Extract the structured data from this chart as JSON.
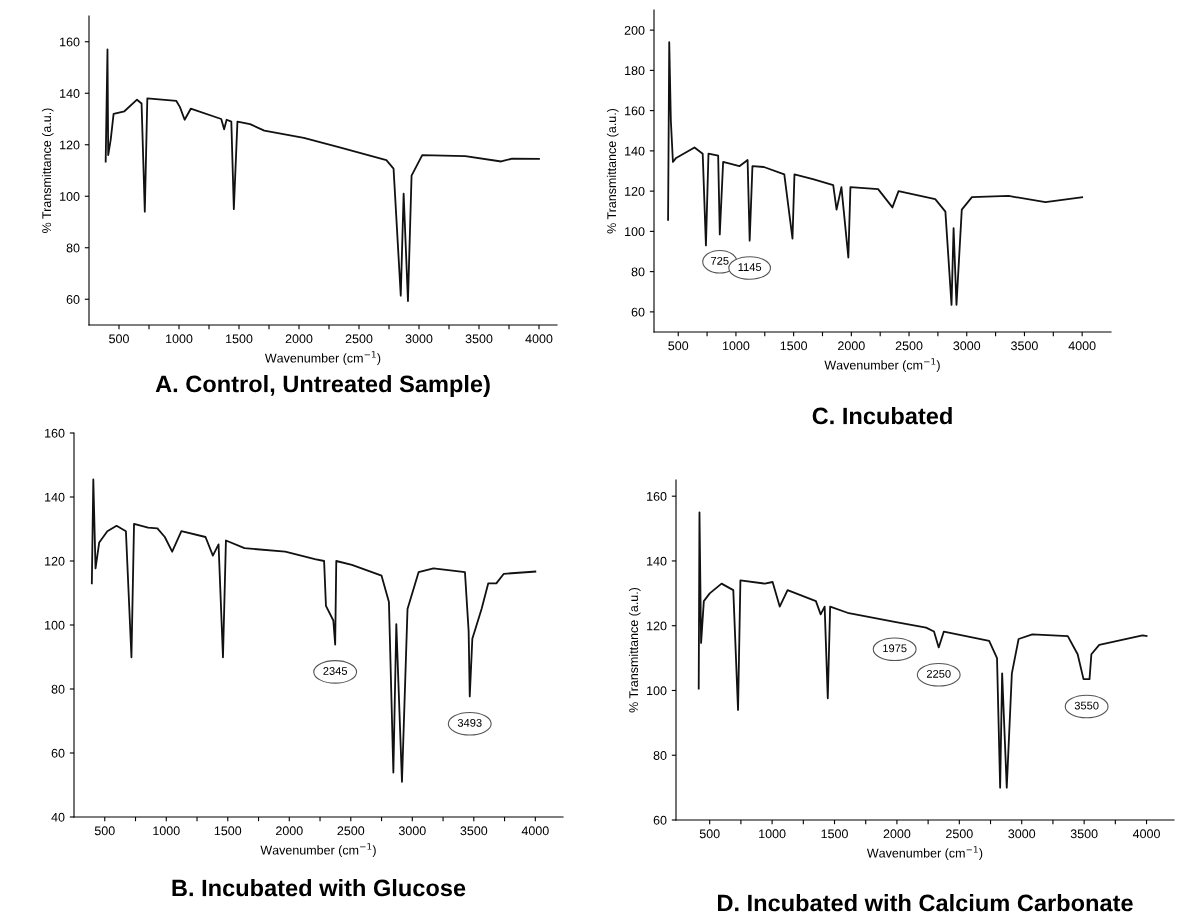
{
  "chart_data": [
    {
      "type": "line",
      "title": "A. Control, Untreated Sample)",
      "xlabel": "Wavenumber (cm$^{−1}$)",
      "ylabel": "% Transmittance (a.u.)",
      "color": "#111111",
      "grid": false,
      "legend": false,
      "x": [
        389,
        404,
        410,
        431,
        455,
        545,
        650,
        688,
        715,
        736,
        978,
        1008,
        1047,
        1098,
        1352,
        1376,
        1397,
        1436,
        1457,
        1487,
        1592,
        1711,
        2040,
        2339,
        2728,
        2788,
        2848,
        2872,
        2908,
        2938,
        3027,
        3386,
        3685,
        3775,
        4000
      ],
      "values": [
        113.5,
        157,
        116,
        122,
        132,
        133,
        137.5,
        136,
        94,
        138,
        137,
        134.6,
        129.7,
        134,
        130,
        126,
        129.7,
        129,
        95,
        129,
        128,
        125.5,
        122.7,
        119,
        114,
        110.7,
        61.4,
        101,
        59.3,
        108,
        116,
        115.6,
        113.5,
        114.6,
        114.5
      ],
      "xlim": [
        250,
        4150
      ],
      "ylim": [
        50,
        170
      ],
      "xticks": [
        500,
        {
          "value": 750,
          "label": null
        },
        1000,
        {
          "value": 1250,
          "label": null
        },
        1500,
        {
          "value": 1750,
          "label": null
        },
        2000,
        {
          "value": 2250,
          "label": null
        },
        2500,
        {
          "value": 2750,
          "label": null
        },
        3000,
        {
          "value": 3250,
          "label": null
        },
        3500,
        {
          "value": 3750,
          "label": null
        },
        4000
      ],
      "yticks": [
        60,
        80,
        100,
        120,
        140,
        160
      ]
    },
    {
      "type": "line",
      "title": "C. Incubated",
      "xlabel": "Wavenumber (cm$^{−1}$)",
      "ylabel": "% Transmittance (a.u.)",
      "color": "#111111",
      "grid": false,
      "legend": false,
      "x": [
        412,
        422,
        436,
        454,
        482,
        641,
        712,
        740,
        762,
        846,
        860,
        889,
        1030,
        1101,
        1119,
        1143,
        1242,
        1419,
        1490,
        1507,
        1667,
        1843,
        1872,
        1914,
        1974,
        1992,
        2232,
        2356,
        2409,
        2727,
        2815,
        2868,
        2886,
        2911,
        2957,
        3045,
        3363,
        3682,
        4000
      ],
      "values": [
        105.7,
        194,
        155,
        134.5,
        136.5,
        141.7,
        138.6,
        93,
        138.6,
        137.6,
        98.5,
        134.5,
        132.4,
        135.5,
        95.4,
        132.4,
        132,
        128.3,
        96.4,
        128.3,
        126,
        123,
        110.8,
        122,
        87,
        122,
        121,
        111.9,
        120,
        116,
        109.8,
        63.5,
        101.6,
        63.5,
        110.8,
        117,
        117.6,
        114.5,
        117
      ],
      "annotations": [
        {
          "text": "725",
          "x": 860,
          "y": 98.5
        },
        {
          "text": "1145",
          "x": 1119,
          "y": 95.4
        }
      ],
      "xlim": [
        290,
        4250
      ],
      "ylim": [
        50,
        210
      ],
      "xticks": [
        500,
        {
          "value": 750,
          "label": null
        },
        1000,
        {
          "value": 1250,
          "label": null
        },
        1500,
        {
          "value": 1750,
          "label": null
        },
        2000,
        {
          "value": 2250,
          "label": null
        },
        2500,
        {
          "value": 2750,
          "label": null
        },
        3000,
        {
          "value": 3250,
          "label": null
        },
        3500,
        {
          "value": 3750,
          "label": null
        },
        4000
      ],
      "yticks": [
        60,
        80,
        100,
        120,
        140,
        160,
        180,
        200
      ]
    },
    {
      "type": "line",
      "title": "B. Incubated with Glucose",
      "xlabel": "Wavenumber (cm$^{−1}$)",
      "color": "#111111",
      "grid": false,
      "legend": false,
      "x": [
        395,
        407,
        425,
        455,
        521,
        596,
        672,
        717,
        738,
        852,
        928,
        988,
        1048,
        1123,
        1319,
        1379,
        1425,
        1461,
        1485,
        1636,
        1967,
        2208,
        2283,
        2298,
        2358,
        2373,
        2382,
        2509,
        2750,
        2810,
        2846,
        2870,
        2916,
        2961,
        3051,
        3172,
        3428,
        3458,
        3467,
        3488,
        3563,
        3617,
        3683,
        3744,
        4000
      ],
      "values": [
        113,
        145.5,
        117.7,
        125.8,
        129.3,
        131,
        129.3,
        89.9,
        131.6,
        130.4,
        130.2,
        127.5,
        122.9,
        129.3,
        127.5,
        121.7,
        125.2,
        89.9,
        126.4,
        124,
        122.9,
        120.6,
        120,
        106,
        101.4,
        93.9,
        120,
        118.8,
        115.4,
        107.2,
        53.9,
        100.3,
        51,
        105,
        116.5,
        117.7,
        116.5,
        98,
        77.7,
        95.7,
        105,
        113,
        113,
        116,
        116.7
      ],
      "annotations": [
        {
          "text": "2345",
          "x": 2373,
          "y": 93.9
        },
        {
          "text": "3493",
          "x": 3467,
          "y": 77.7
        }
      ],
      "xlim": [
        250,
        4225
      ],
      "ylim": [
        40,
        160
      ],
      "xticks": [
        500,
        {
          "value": 750,
          "label": null
        },
        1000,
        {
          "value": 1250,
          "label": null
        },
        1500,
        {
          "value": 1750,
          "label": null
        },
        2000,
        {
          "value": 2250,
          "label": null
        },
        2500,
        {
          "value": 2750,
          "label": null
        },
        3000,
        {
          "value": 3250,
          "label": null
        },
        3500,
        {
          "value": 3750,
          "label": null
        },
        4000
      ],
      "yticks": [
        40,
        60,
        80,
        100,
        120,
        140,
        160
      ]
    },
    {
      "type": "line",
      "title": "D. Incubated with Calcium Carbonate",
      "xlabel": "Wavenumber (cm$^{−1}$)",
      "ylabel": "% Transmittance (a.u.)",
      "color": "#111111",
      "grid": false,
      "legend": false,
      "x": [
        412,
        418,
        431,
        453,
        500,
        595,
        689,
        727,
        746,
        941,
        1004,
        1061,
        1124,
        1351,
        1389,
        1421,
        1446,
        1465,
        1604,
        1982,
        2234,
        2297,
        2335,
        2376,
        2739,
        2802,
        2827,
        2843,
        2880,
        2921,
        2975,
        3085,
        3369,
        3448,
        3495,
        3543,
        3558,
        3621,
        3968,
        4000
      ],
      "values": [
        100.6,
        155,
        114.7,
        127.6,
        130,
        133,
        131,
        94,
        134,
        133,
        133.5,
        125.9,
        131,
        127.6,
        123.5,
        125.9,
        97.6,
        125.9,
        124,
        121.2,
        119.4,
        118.2,
        113.3,
        118.2,
        115.3,
        110,
        70,
        105.3,
        70,
        105.3,
        115.9,
        117.3,
        116.8,
        111.2,
        103.5,
        103.5,
        111.2,
        114.1,
        117,
        116.8
      ],
      "annotations": [
        {
          "text": "1975",
          "x": 1982,
          "y": 121.2
        },
        {
          "text": "2250",
          "x": 2335,
          "y": 113.3
        },
        {
          "text": "3550",
          "x": 3520,
          "y": 103.5
        }
      ],
      "xlim": [
        230,
        4220
      ],
      "ylim": [
        60,
        165
      ],
      "xticks": [
        500,
        {
          "value": 750,
          "label": null
        },
        1000,
        {
          "value": 1250,
          "label": null
        },
        1500,
        {
          "value": 1750,
          "label": null
        },
        2000,
        {
          "value": 2250,
          "label": null
        },
        2500,
        {
          "value": 2750,
          "label": null
        },
        3000,
        {
          "value": 3250,
          "label": null
        },
        3500,
        {
          "value": 3750,
          "label": null
        },
        4000
      ],
      "yticks": [
        60,
        80,
        100,
        120,
        140,
        160
      ]
    }
  ]
}
